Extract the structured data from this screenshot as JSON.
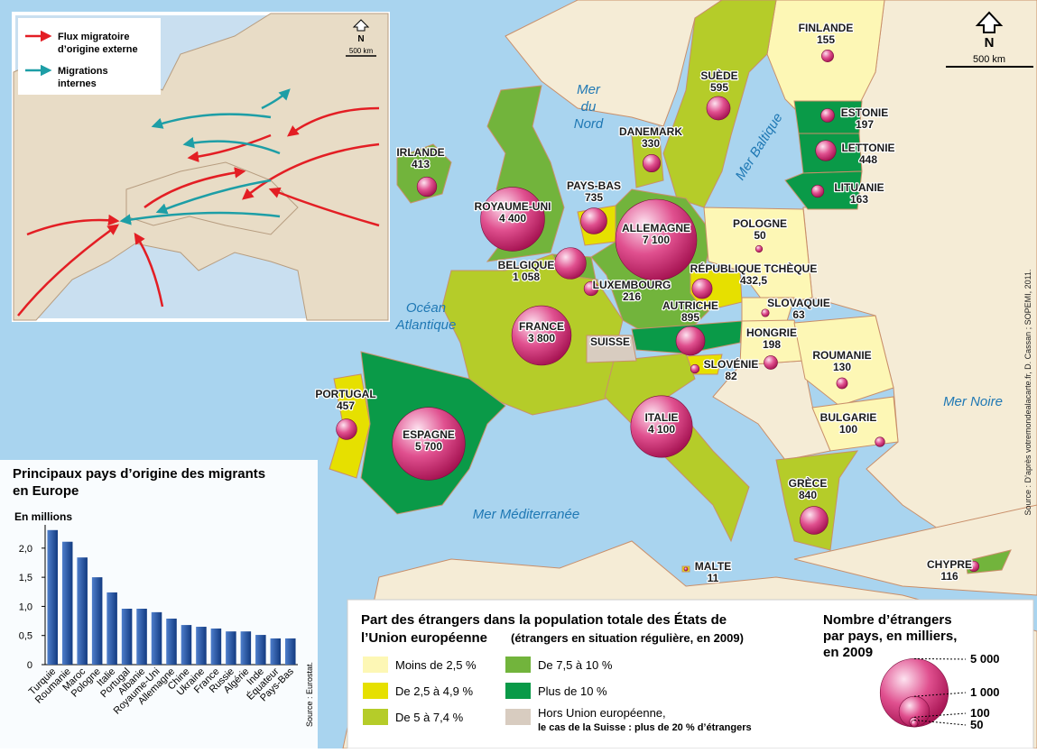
{
  "map": {
    "north": "N",
    "scale": "500 km",
    "credit": "Source : D’après votremondealacarte.fr, D. Cassan ; SOPEMI, 2011.",
    "seas": [
      [
        "Mer",
        "du",
        "Nord"
      ],
      [
        "Océan",
        "Atlantique"
      ],
      [
        "Mer Baltique"
      ],
      [
        "Mer Noire"
      ],
      [
        "Mer Méditerranée"
      ]
    ],
    "countries": [
      {
        "name": "FINLANDE",
        "value": 155,
        "color": "#fdf7b5"
      },
      {
        "name": "SUÈDE",
        "value": 595,
        "color": "#b5cc29"
      },
      {
        "name": "DANEMARK",
        "value": 330,
        "color": "#b5cc29"
      },
      {
        "name": "ESTONIE",
        "value": 197,
        "color": "#0a9a48"
      },
      {
        "name": "LETTONIE",
        "value": 448,
        "color": "#0a9a48"
      },
      {
        "name": "LITUANIE",
        "value": 163,
        "color": "#0a9a48"
      },
      {
        "name": "IRLANDE",
        "value": 413,
        "color": "#72b43c"
      },
      {
        "name": "ROYAUME-UNI",
        "value": 4400,
        "value_label": "4 400",
        "color": "#72b43c"
      },
      {
        "name": "PAYS-BAS",
        "value": 735,
        "color": "#e6e000"
      },
      {
        "name": "ALLEMAGNE",
        "value": 7100,
        "value_label": "7 100",
        "color": "#72b43c"
      },
      {
        "name": "POLOGNE",
        "value": 50,
        "color": "#fdf7b5"
      },
      {
        "name": "BELGIQUE",
        "value": 1058,
        "value_label": "1 058",
        "color": "#72b43c"
      },
      {
        "name": "LUXEMBOURG",
        "value": 216,
        "color": "#0a9a48"
      },
      {
        "name": "RÉPUBLIQUE TCHÈQUE",
        "value": 432.5,
        "value_label": "432,5",
        "color": "#e6e000"
      },
      {
        "name": "SLOVAQUIE",
        "value": 63,
        "color": "#fdf7b5"
      },
      {
        "name": "AUTRICHE",
        "value": 895,
        "color": "#0a9a48"
      },
      {
        "name": "FRANCE",
        "value": 3800,
        "value_label": "3 800",
        "color": "#b5cc29"
      },
      {
        "name": "HONGRIE",
        "value": 198,
        "color": "#fdf7b5"
      },
      {
        "name": "ROUMANIE",
        "value": 130,
        "color": "#fdf7b5"
      },
      {
        "name": "SLOVÉNIE",
        "value": 82,
        "color": "#e6e000"
      },
      {
        "name": "PORTUGAL",
        "value": 457,
        "color": "#e6e000"
      },
      {
        "name": "ESPAGNE",
        "value": 5700,
        "value_label": "5 700",
        "color": "#0a9a48"
      },
      {
        "name": "ITALIE",
        "value": 4100,
        "value_label": "4 100",
        "color": "#b5cc29"
      },
      {
        "name": "BULGARIE",
        "value": 100,
        "color": "#fdf7b5"
      },
      {
        "name": "GRÈCE",
        "value": 840,
        "color": "#b5cc29"
      },
      {
        "name": "MALTE",
        "value": 11,
        "color": "#e6e000"
      },
      {
        "name": "CHYPRE",
        "value": 116,
        "color": "#72b43c"
      },
      {
        "name": "SUISSE",
        "color": "#d8ccc0"
      }
    ]
  },
  "inset": {
    "north": "N",
    "scale": "500 km",
    "legend": [
      {
        "label": [
          "Flux migratoire",
          "d’origine externe"
        ],
        "color": "#e31e24"
      },
      {
        "label": [
          "Migrations",
          "internes"
        ],
        "color": "#1d9ea6"
      }
    ]
  },
  "legend": {
    "title": [
      "Part des étrangers dans la population totale des États de",
      "l’Union européenne"
    ],
    "subtitle": "(étrangers en situation régulière, en 2009)",
    "classes": [
      {
        "label": [
          "Moins de 2,5 %"
        ],
        "color": "#fdf7b5"
      },
      {
        "label": [
          "De 2,5 à 4,9 %"
        ],
        "color": "#e6e000"
      },
      {
        "label": [
          "De 5 à 7,4 %"
        ],
        "color": "#b5cc29"
      },
      {
        "label": [
          "De 7,5 à 10 %"
        ],
        "color": "#72b43c"
      },
      {
        "label": [
          "Plus de 10 %"
        ],
        "color": "#0a9a48"
      },
      {
        "label": [
          "Hors Union européenne,",
          "le cas de la Suisse : plus de 20 % d’étrangers"
        ],
        "color": "#d8ccc0"
      }
    ]
  },
  "bubble_legend": {
    "title": [
      "Nombre d’étrangers",
      "par pays, en milliers,",
      "en 2009"
    ],
    "sizes": [
      {
        "value": 5000,
        "label": "5 000"
      },
      {
        "value": 1000,
        "label": "1 000"
      },
      100,
      50
    ]
  },
  "chart_data": {
    "type": "bar",
    "title": [
      "Principaux pays d’origine des migrants",
      "en Europe"
    ],
    "y_label": "En millions",
    "source": "Source : Eurostat.",
    "color": "#1e4fa0",
    "categories": [
      "Turquie",
      "Roumanie",
      "Maroc",
      "Pologne",
      "Italie",
      "Portugal",
      "Albanie",
      "Royaume-Uni",
      "Allemagne",
      "Chine",
      "Ukraine",
      "France",
      "Russie",
      "Algérie",
      "Inde",
      "Équateur",
      "Pays-Bas"
    ],
    "values": [
      2.31,
      2.11,
      1.84,
      1.5,
      1.24,
      0.96,
      0.96,
      0.9,
      0.79,
      0.68,
      0.65,
      0.62,
      0.57,
      0.57,
      0.51,
      0.45,
      0.45
    ],
    "ylim": [
      0,
      2.4
    ],
    "yticks": [
      0,
      {
        "value": 0.5,
        "label": "0,5"
      },
      {
        "value": 1,
        "label": "1,0"
      },
      {
        "value": 1.5,
        "label": "1,5"
      },
      {
        "value": 2,
        "label": "2,0"
      }
    ]
  }
}
